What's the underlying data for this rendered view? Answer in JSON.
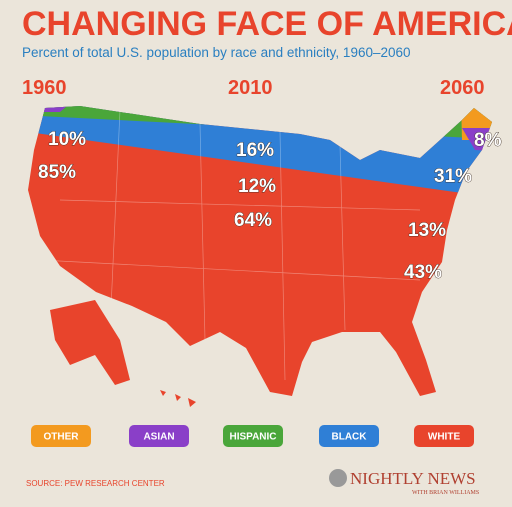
{
  "header": {
    "title": "CHANGING FACE OF AMERICA",
    "subtitle": "Percent of total U.S. population by race and ethnicity, 1960–2060"
  },
  "years": [
    "1960",
    "2010",
    "2060"
  ],
  "map_labels": [
    "10%",
    "85%",
    "16%",
    "12%",
    "64%",
    "8%",
    "31%",
    "13%",
    "43%"
  ],
  "legend": [
    "OTHER",
    "ASIAN",
    "HISPANIC",
    "BLACK",
    "WHITE"
  ],
  "source": "SOURCE: PEW RESEARCH CENTER",
  "logo": {
    "name": "NIGHTLY NEWS",
    "byline": "WITH BRIAN WILLIAMS"
  }
}
